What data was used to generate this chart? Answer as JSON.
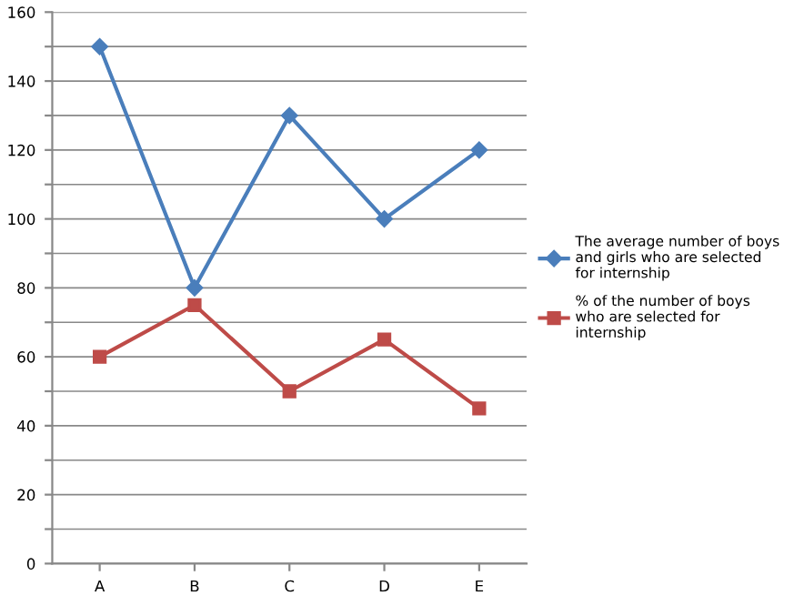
{
  "chart_data": {
    "type": "line",
    "categories": [
      "A",
      "B",
      "C",
      "D",
      "E"
    ],
    "series": [
      {
        "name": "The average number of boys\nand girls who are selected\nfor internship",
        "color": "#4a7ebb",
        "marker": "diamond",
        "values": [
          150,
          80,
          130,
          100,
          120
        ]
      },
      {
        "name": "% of the number of boys\nwho are selected for\ninternship",
        "color": "#be4b48",
        "marker": "square",
        "values": [
          60,
          75,
          50,
          65,
          45
        ]
      }
    ],
    "ylim": [
      0,
      160
    ],
    "yticks": [
      0,
      {
        "value": 10,
        "label": null
      },
      20,
      {
        "value": 30,
        "label": null
      },
      40,
      {
        "value": 50,
        "label": null
      },
      60,
      {
        "value": 70,
        "label": null
      },
      80,
      {
        "value": 90,
        "label": null
      },
      100,
      {
        "value": 110,
        "label": null
      },
      120,
      {
        "value": 130,
        "label": null
      },
      140,
      {
        "value": 150,
        "label": null
      },
      160
    ],
    "grid": "y",
    "legend": "right",
    "line_style": "solid"
  }
}
